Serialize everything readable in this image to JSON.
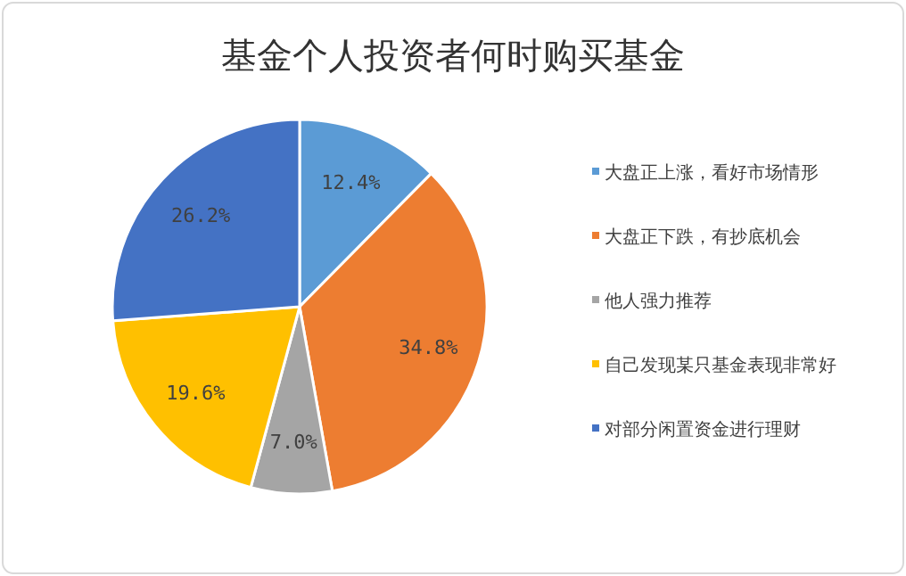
{
  "chart_data": {
    "type": "pie",
    "title": "基金个人投资者何时购买基金",
    "categories": [
      "大盘正上涨，看好市场情形",
      "大盘正下跌，有抄底机会",
      "他人强力推荐",
      "自己发现某只基金表现非常好",
      "对部分闲置资金进行理财"
    ],
    "values": [
      12.4,
      34.8,
      7.0,
      19.6,
      26.2
    ],
    "colors": [
      "#5b9bd5",
      "#ed7d31",
      "#a5a5a5",
      "#ffc000",
      "#4472c4"
    ],
    "value_labels": [
      "12.4%",
      "34.8%",
      "7.0%",
      "19.6%",
      "26.2%"
    ],
    "legend": "right"
  }
}
